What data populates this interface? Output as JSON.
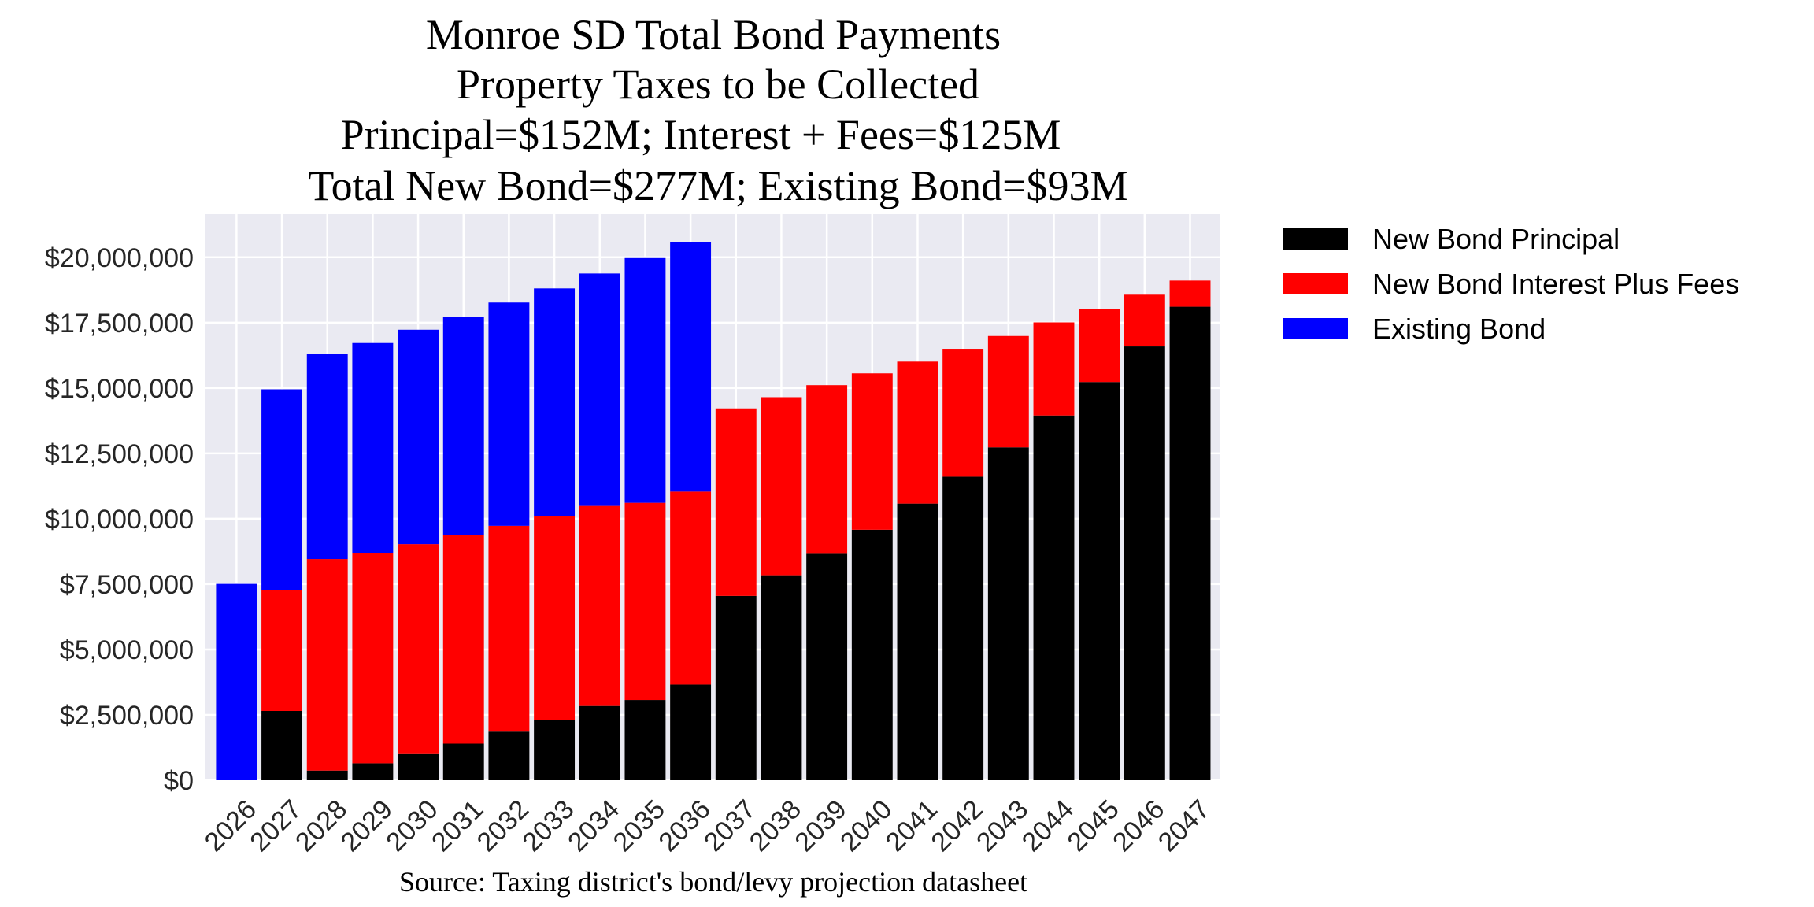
{
  "chart_data": {
    "type": "bar",
    "stacked": true,
    "title_lines": [
      "Monroe SD Total Bond Payments",
      "Property Taxes to be Collected",
      "Principal=$152M; Interest + Fees=$125M",
      "Total New Bond=$277M; Existing Bond=$93M"
    ],
    "source": "Source: Taxing district's bond/levy projection datasheet",
    "xlabel": "",
    "ylabel": "",
    "categories": [
      "2026",
      "2027",
      "2028",
      "2029",
      "2030",
      "2031",
      "2032",
      "2033",
      "2034",
      "2035",
      "2036",
      "2037",
      "2038",
      "2039",
      "2040",
      "2041",
      "2042",
      "2043",
      "2044",
      "2045",
      "2046",
      "2047"
    ],
    "series": [
      {
        "name": "New Bond Principal",
        "color": "#000000",
        "values": [
          0,
          2650000,
          370000,
          650000,
          1000000,
          1400000,
          1860000,
          2310000,
          2840000,
          3070000,
          3660000,
          7050000,
          7840000,
          8660000,
          9580000,
          10580000,
          11610000,
          12730000,
          13950000,
          15230000,
          16590000,
          18110000
        ]
      },
      {
        "name": "New Bond Interest Plus Fees",
        "color": "#ff0000",
        "values": [
          0,
          4630000,
          8090000,
          8040000,
          8030000,
          7980000,
          7870000,
          7780000,
          7650000,
          7540000,
          7380000,
          7170000,
          6810000,
          6450000,
          5980000,
          5430000,
          4890000,
          4260000,
          3560000,
          2790000,
          1980000,
          1000000
        ]
      },
      {
        "name": "Existing Bond",
        "color": "#0000ff",
        "values": [
          7510000,
          7670000,
          7860000,
          8030000,
          8200000,
          8340000,
          8540000,
          8720000,
          8890000,
          9360000,
          9530000,
          0,
          0,
          0,
          0,
          0,
          0,
          0,
          0,
          0,
          0,
          0
        ]
      }
    ],
    "yticks": [
      "$0",
      "$2,500,000",
      "$5,000,000",
      "$7,500,000",
      "$10,000,000",
      "$12,500,000",
      "$15,000,000",
      "$17,500,000",
      "$20,000,000"
    ],
    "ytick_values": [
      0,
      2500000,
      5000000,
      7500000,
      10000000,
      12500000,
      15000000,
      17500000,
      20000000
    ],
    "ylim": [
      0,
      21650000
    ],
    "grid": true,
    "background": "#eaeaf2",
    "legend_placement": "outside-top-right"
  }
}
